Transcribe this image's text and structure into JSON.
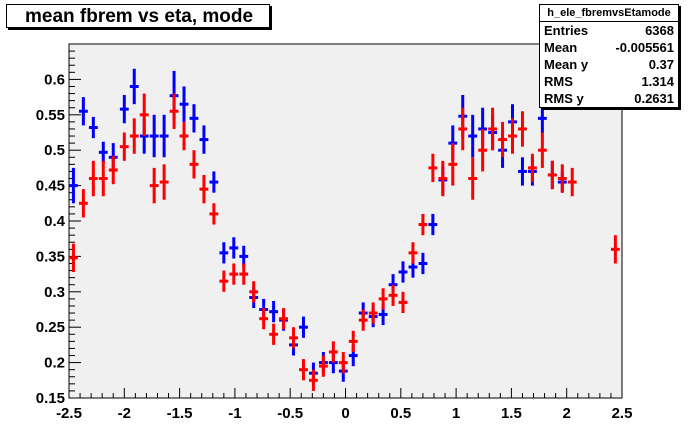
{
  "title": "mean fbrem vs eta, mode",
  "stats": {
    "name": "h_ele_fbremvsEtamode",
    "rows": [
      {
        "label": "Entries",
        "value": "6368"
      },
      {
        "label": "Mean",
        "value": "-0.005561"
      },
      {
        "label": "Mean y",
        "value": "0.37"
      },
      {
        "label": "RMS",
        "value": "1.314"
      },
      {
        "label": "RMS y",
        "value": "0.2631"
      }
    ]
  },
  "chart_data": {
    "type": "scatter",
    "title": "mean fbrem vs eta, mode",
    "xlim": [
      -2.5,
      2.5
    ],
    "ylim": [
      0.15,
      0.65
    ],
    "xticks": [
      "-2.5",
      "-2",
      "-1.5",
      "-1",
      "-0.5",
      "0",
      "0.5",
      "1",
      "1.5",
      "2",
      "2.5"
    ],
    "yticks": [
      "0.15",
      "0.2",
      "0.25",
      "0.3",
      "0.35",
      "0.4",
      "0.45",
      "0.5",
      "0.55",
      "0.6"
    ],
    "bin_half_width": 0.04,
    "colors": {
      "blue": "#0000ff",
      "red": "#ff0000",
      "frame_bg": "#f0f0f0"
    },
    "series": [
      {
        "color": "#0000ff",
        "points": [
          {
            "x": -2.46,
            "y": 0.45,
            "err": 0.025
          },
          {
            "x": -2.37,
            "y": 0.555,
            "err": 0.02
          },
          {
            "x": -2.28,
            "y": 0.532,
            "err": 0.015
          },
          {
            "x": -2.19,
            "y": 0.497,
            "err": 0.015
          },
          {
            "x": -2.1,
            "y": 0.49,
            "err": 0.02
          },
          {
            "x": -2.0,
            "y": 0.558,
            "err": 0.02
          },
          {
            "x": -1.91,
            "y": 0.59,
            "err": 0.025
          },
          {
            "x": -1.82,
            "y": 0.52,
            "err": 0.025
          },
          {
            "x": -1.73,
            "y": 0.52,
            "err": 0.03
          },
          {
            "x": -1.64,
            "y": 0.52,
            "err": 0.03
          },
          {
            "x": -1.55,
            "y": 0.577,
            "err": 0.035
          },
          {
            "x": -1.46,
            "y": 0.565,
            "err": 0.025
          },
          {
            "x": -1.37,
            "y": 0.545,
            "err": 0.02
          },
          {
            "x": -1.28,
            "y": 0.515,
            "err": 0.02
          },
          {
            "x": -1.19,
            "y": 0.455,
            "err": 0.015
          },
          {
            "x": -1.1,
            "y": 0.355,
            "err": 0.015
          },
          {
            "x": -1.01,
            "y": 0.362,
            "err": 0.015
          },
          {
            "x": -0.92,
            "y": 0.35,
            "err": 0.015
          },
          {
            "x": -0.83,
            "y": 0.292,
            "err": 0.015
          },
          {
            "x": -0.74,
            "y": 0.275,
            "err": 0.015
          },
          {
            "x": -0.65,
            "y": 0.272,
            "err": 0.015
          },
          {
            "x": -0.56,
            "y": 0.26,
            "err": 0.015
          },
          {
            "x": -0.47,
            "y": 0.225,
            "err": 0.015
          },
          {
            "x": -0.38,
            "y": 0.25,
            "err": 0.015
          },
          {
            "x": -0.29,
            "y": 0.185,
            "err": 0.015
          },
          {
            "x": -0.2,
            "y": 0.2,
            "err": 0.015
          },
          {
            "x": -0.11,
            "y": 0.2,
            "err": 0.015
          },
          {
            "x": -0.02,
            "y": 0.188,
            "err": 0.015
          },
          {
            "x": 0.07,
            "y": 0.21,
            "err": 0.015
          },
          {
            "x": 0.16,
            "y": 0.27,
            "err": 0.015
          },
          {
            "x": 0.25,
            "y": 0.265,
            "err": 0.015
          },
          {
            "x": 0.34,
            "y": 0.268,
            "err": 0.015
          },
          {
            "x": 0.43,
            "y": 0.31,
            "err": 0.015
          },
          {
            "x": 0.52,
            "y": 0.328,
            "err": 0.015
          },
          {
            "x": 0.61,
            "y": 0.335,
            "err": 0.015
          },
          {
            "x": 0.7,
            "y": 0.34,
            "err": 0.015
          },
          {
            "x": 0.79,
            "y": 0.395,
            "err": 0.015
          },
          {
            "x": 0.88,
            "y": 0.458,
            "err": 0.02
          },
          {
            "x": 0.97,
            "y": 0.51,
            "err": 0.025
          },
          {
            "x": 1.06,
            "y": 0.548,
            "err": 0.03
          },
          {
            "x": 1.15,
            "y": 0.52,
            "err": 0.03
          },
          {
            "x": 1.24,
            "y": 0.53,
            "err": 0.03
          },
          {
            "x": 1.33,
            "y": 0.525,
            "err": 0.025
          },
          {
            "x": 1.42,
            "y": 0.5,
            "err": 0.025
          },
          {
            "x": 1.51,
            "y": 0.54,
            "err": 0.025
          },
          {
            "x": 1.6,
            "y": 0.47,
            "err": 0.02
          },
          {
            "x": 1.69,
            "y": 0.47,
            "err": 0.02
          },
          {
            "x": 1.78,
            "y": 0.545,
            "err": 0.02
          },
          {
            "x": 1.87,
            "y": 0.465,
            "err": 0.02
          },
          {
            "x": 1.96,
            "y": 0.455,
            "err": 0.015
          }
        ]
      },
      {
        "color": "#ff0000",
        "points": [
          {
            "x": -2.46,
            "y": 0.348,
            "err": 0.02
          },
          {
            "x": -2.37,
            "y": 0.425,
            "err": 0.02
          },
          {
            "x": -2.28,
            "y": 0.46,
            "err": 0.025
          },
          {
            "x": -2.19,
            "y": 0.46,
            "err": 0.025
          },
          {
            "x": -2.1,
            "y": 0.472,
            "err": 0.02
          },
          {
            "x": -2.0,
            "y": 0.505,
            "err": 0.02
          },
          {
            "x": -1.91,
            "y": 0.52,
            "err": 0.025
          },
          {
            "x": -1.82,
            "y": 0.55,
            "err": 0.03
          },
          {
            "x": -1.73,
            "y": 0.45,
            "err": 0.025
          },
          {
            "x": -1.64,
            "y": 0.455,
            "err": 0.025
          },
          {
            "x": -1.55,
            "y": 0.555,
            "err": 0.025
          },
          {
            "x": -1.46,
            "y": 0.52,
            "err": 0.02
          },
          {
            "x": -1.37,
            "y": 0.48,
            "err": 0.02
          },
          {
            "x": -1.28,
            "y": 0.445,
            "err": 0.02
          },
          {
            "x": -1.19,
            "y": 0.41,
            "err": 0.015
          },
          {
            "x": -1.1,
            "y": 0.315,
            "err": 0.015
          },
          {
            "x": -1.01,
            "y": 0.325,
            "err": 0.015
          },
          {
            "x": -0.92,
            "y": 0.325,
            "err": 0.015
          },
          {
            "x": -0.83,
            "y": 0.3,
            "err": 0.015
          },
          {
            "x": -0.74,
            "y": 0.262,
            "err": 0.015
          },
          {
            "x": -0.65,
            "y": 0.24,
            "err": 0.015
          },
          {
            "x": -0.56,
            "y": 0.262,
            "err": 0.015
          },
          {
            "x": -0.47,
            "y": 0.235,
            "err": 0.015
          },
          {
            "x": -0.38,
            "y": 0.19,
            "err": 0.015
          },
          {
            "x": -0.29,
            "y": 0.175,
            "err": 0.015
          },
          {
            "x": -0.2,
            "y": 0.195,
            "err": 0.015
          },
          {
            "x": -0.11,
            "y": 0.215,
            "err": 0.015
          },
          {
            "x": -0.02,
            "y": 0.2,
            "err": 0.015
          },
          {
            "x": 0.07,
            "y": 0.23,
            "err": 0.015
          },
          {
            "x": 0.16,
            "y": 0.26,
            "err": 0.015
          },
          {
            "x": 0.25,
            "y": 0.27,
            "err": 0.015
          },
          {
            "x": 0.34,
            "y": 0.29,
            "err": 0.015
          },
          {
            "x": 0.43,
            "y": 0.295,
            "err": 0.015
          },
          {
            "x": 0.52,
            "y": 0.285,
            "err": 0.015
          },
          {
            "x": 0.61,
            "y": 0.355,
            "err": 0.015
          },
          {
            "x": 0.7,
            "y": 0.395,
            "err": 0.015
          },
          {
            "x": 0.79,
            "y": 0.475,
            "err": 0.02
          },
          {
            "x": 0.88,
            "y": 0.46,
            "err": 0.025
          },
          {
            "x": 0.97,
            "y": 0.48,
            "err": 0.03
          },
          {
            "x": 1.06,
            "y": 0.53,
            "err": 0.03
          },
          {
            "x": 1.15,
            "y": 0.46,
            "err": 0.03
          },
          {
            "x": 1.24,
            "y": 0.5,
            "err": 0.03
          },
          {
            "x": 1.33,
            "y": 0.53,
            "err": 0.03
          },
          {
            "x": 1.42,
            "y": 0.515,
            "err": 0.025
          },
          {
            "x": 1.51,
            "y": 0.52,
            "err": 0.025
          },
          {
            "x": 1.6,
            "y": 0.53,
            "err": 0.025
          },
          {
            "x": 1.69,
            "y": 0.475,
            "err": 0.02
          },
          {
            "x": 1.78,
            "y": 0.5,
            "err": 0.025
          },
          {
            "x": 1.87,
            "y": 0.465,
            "err": 0.02
          },
          {
            "x": 1.96,
            "y": 0.46,
            "err": 0.02
          },
          {
            "x": 2.05,
            "y": 0.455,
            "err": 0.02
          },
          {
            "x": 2.44,
            "y": 0.36,
            "err": 0.02
          }
        ]
      }
    ]
  }
}
